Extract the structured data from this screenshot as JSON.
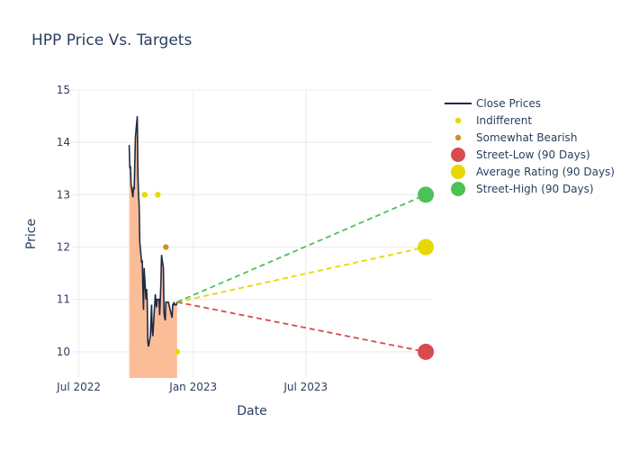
{
  "chart_data": {
    "type": "line",
    "title": "HPP Price Vs. Targets",
    "xlabel": "Date",
    "ylabel": "Price",
    "x_range": [
      "2022-06-20",
      "2024-01-20"
    ],
    "ylim": [
      9.5,
      15.0
    ],
    "x_ticks": [
      {
        "date": "2022-07-01",
        "label": "Jul 2022"
      },
      {
        "date": "2023-01-01",
        "label": "Jan 2023"
      },
      {
        "date": "2023-07-01",
        "label": "Jul 2023"
      }
    ],
    "y_ticks": [
      10,
      11,
      12,
      13,
      14,
      15
    ],
    "grid": true,
    "legend_position": "right",
    "close_prices": {
      "name": "Close Prices",
      "color": "#1f2a44",
      "fill_color": "#fbbd98",
      "x": [
        "2022-09-20",
        "2022-09-21",
        "2022-09-22",
        "2022-09-23",
        "2022-09-26",
        "2022-09-27",
        "2022-09-28",
        "2022-09-29",
        "2022-09-30",
        "2022-10-03",
        "2022-10-04",
        "2022-10-05",
        "2022-10-06",
        "2022-10-07",
        "2022-10-10",
        "2022-10-11",
        "2022-10-12",
        "2022-10-13",
        "2022-10-14",
        "2022-10-17",
        "2022-10-18",
        "2022-10-19",
        "2022-10-20",
        "2022-10-21",
        "2022-10-24",
        "2022-10-25",
        "2022-10-26",
        "2022-10-27",
        "2022-10-28",
        "2022-10-31",
        "2022-11-01",
        "2022-11-02",
        "2022-11-03",
        "2022-11-04",
        "2022-11-07",
        "2022-11-08",
        "2022-11-09",
        "2022-11-10",
        "2022-11-11",
        "2022-11-14",
        "2022-11-15",
        "2022-11-16",
        "2022-11-17",
        "2022-11-18",
        "2022-11-21",
        "2022-11-22",
        "2022-11-23",
        "2022-11-25",
        "2022-11-28",
        "2022-11-29",
        "2022-11-30",
        "2022-12-01",
        "2022-12-02",
        "2022-12-05",
        "2022-12-06"
      ],
      "y": [
        13.95,
        13.5,
        13.55,
        13.2,
        12.95,
        13.15,
        13.1,
        13.6,
        14.1,
        14.5,
        13.4,
        13.0,
        12.8,
        12.1,
        11.7,
        11.75,
        11.2,
        10.8,
        11.6,
        11.0,
        11.2,
        10.95,
        10.2,
        10.1,
        10.3,
        10.6,
        10.9,
        10.4,
        10.3,
        10.9,
        11.1,
        10.95,
        10.85,
        11.0,
        11.0,
        10.7,
        11.0,
        11.3,
        11.85,
        11.6,
        10.75,
        10.65,
        10.6,
        10.95,
        10.95,
        10.95,
        10.9,
        10.8,
        10.65,
        10.9,
        10.9,
        10.95,
        10.9,
        10.9,
        10.95
      ]
    },
    "ratings": [
      {
        "name": "Indifferent",
        "color": "#e6d800",
        "points": [
          {
            "x": "2022-10-15",
            "y": 13.0
          },
          {
            "x": "2022-11-05",
            "y": 13.0
          },
          {
            "x": "2022-12-06",
            "y": 10.0
          }
        ]
      },
      {
        "name": "Somewhat Bearish",
        "color": "#c8961b",
        "points": [
          {
            "x": "2022-11-18",
            "y": 12.0
          }
        ]
      }
    ],
    "targets": {
      "start": {
        "x": "2022-12-06",
        "y": 10.95
      },
      "end_date": "2024-01-10",
      "lines": [
        {
          "name": "Street-Low (90 Days)",
          "color": "#d94a4f",
          "value": 10.0
        },
        {
          "name": "Average Rating (90 Days)",
          "color": "#e6d800",
          "value": 12.0
        },
        {
          "name": "Street-High (90 Days)",
          "color": "#4cc155",
          "value": 13.0
        }
      ]
    }
  }
}
